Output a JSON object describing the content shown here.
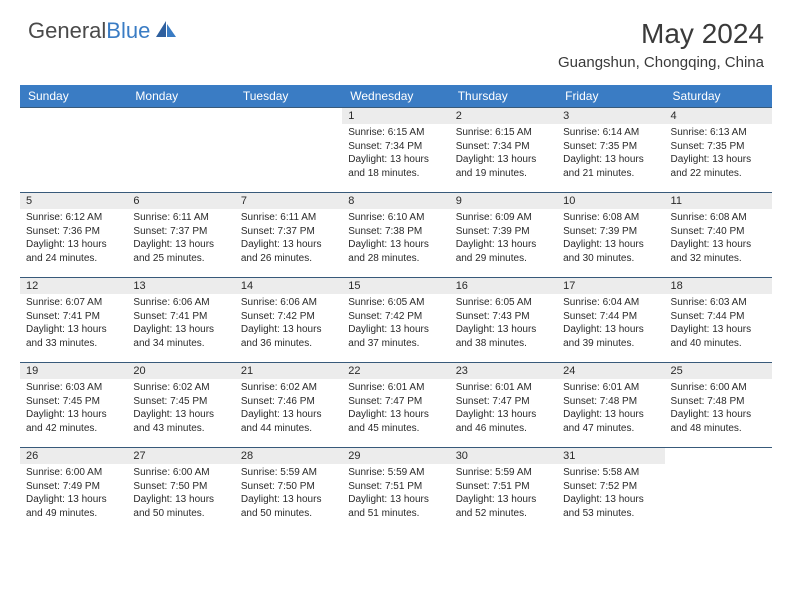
{
  "logo": {
    "part1": "General",
    "part2": "Blue"
  },
  "month_title": "May 2024",
  "location": "Guangshun, Chongqing, China",
  "colors": {
    "header_bg": "#3a7cc4",
    "header_fg": "#ffffff",
    "daynum_bg": "#ececec",
    "border": "#385a7a",
    "text": "#2a2a2a",
    "logo_gray": "#4a4a4a",
    "logo_blue": "#3a7cc4"
  },
  "day_headers": [
    "Sunday",
    "Monday",
    "Tuesday",
    "Wednesday",
    "Thursday",
    "Friday",
    "Saturday"
  ],
  "weeks": [
    [
      {
        "n": "",
        "lines": []
      },
      {
        "n": "",
        "lines": []
      },
      {
        "n": "",
        "lines": []
      },
      {
        "n": "1",
        "lines": [
          "Sunrise: 6:15 AM",
          "Sunset: 7:34 PM",
          "Daylight: 13 hours",
          "and 18 minutes."
        ]
      },
      {
        "n": "2",
        "lines": [
          "Sunrise: 6:15 AM",
          "Sunset: 7:34 PM",
          "Daylight: 13 hours",
          "and 19 minutes."
        ]
      },
      {
        "n": "3",
        "lines": [
          "Sunrise: 6:14 AM",
          "Sunset: 7:35 PM",
          "Daylight: 13 hours",
          "and 21 minutes."
        ]
      },
      {
        "n": "4",
        "lines": [
          "Sunrise: 6:13 AM",
          "Sunset: 7:35 PM",
          "Daylight: 13 hours",
          "and 22 minutes."
        ]
      }
    ],
    [
      {
        "n": "5",
        "lines": [
          "Sunrise: 6:12 AM",
          "Sunset: 7:36 PM",
          "Daylight: 13 hours",
          "and 24 minutes."
        ]
      },
      {
        "n": "6",
        "lines": [
          "Sunrise: 6:11 AM",
          "Sunset: 7:37 PM",
          "Daylight: 13 hours",
          "and 25 minutes."
        ]
      },
      {
        "n": "7",
        "lines": [
          "Sunrise: 6:11 AM",
          "Sunset: 7:37 PM",
          "Daylight: 13 hours",
          "and 26 minutes."
        ]
      },
      {
        "n": "8",
        "lines": [
          "Sunrise: 6:10 AM",
          "Sunset: 7:38 PM",
          "Daylight: 13 hours",
          "and 28 minutes."
        ]
      },
      {
        "n": "9",
        "lines": [
          "Sunrise: 6:09 AM",
          "Sunset: 7:39 PM",
          "Daylight: 13 hours",
          "and 29 minutes."
        ]
      },
      {
        "n": "10",
        "lines": [
          "Sunrise: 6:08 AM",
          "Sunset: 7:39 PM",
          "Daylight: 13 hours",
          "and 30 minutes."
        ]
      },
      {
        "n": "11",
        "lines": [
          "Sunrise: 6:08 AM",
          "Sunset: 7:40 PM",
          "Daylight: 13 hours",
          "and 32 minutes."
        ]
      }
    ],
    [
      {
        "n": "12",
        "lines": [
          "Sunrise: 6:07 AM",
          "Sunset: 7:41 PM",
          "Daylight: 13 hours",
          "and 33 minutes."
        ]
      },
      {
        "n": "13",
        "lines": [
          "Sunrise: 6:06 AM",
          "Sunset: 7:41 PM",
          "Daylight: 13 hours",
          "and 34 minutes."
        ]
      },
      {
        "n": "14",
        "lines": [
          "Sunrise: 6:06 AM",
          "Sunset: 7:42 PM",
          "Daylight: 13 hours",
          "and 36 minutes."
        ]
      },
      {
        "n": "15",
        "lines": [
          "Sunrise: 6:05 AM",
          "Sunset: 7:42 PM",
          "Daylight: 13 hours",
          "and 37 minutes."
        ]
      },
      {
        "n": "16",
        "lines": [
          "Sunrise: 6:05 AM",
          "Sunset: 7:43 PM",
          "Daylight: 13 hours",
          "and 38 minutes."
        ]
      },
      {
        "n": "17",
        "lines": [
          "Sunrise: 6:04 AM",
          "Sunset: 7:44 PM",
          "Daylight: 13 hours",
          "and 39 minutes."
        ]
      },
      {
        "n": "18",
        "lines": [
          "Sunrise: 6:03 AM",
          "Sunset: 7:44 PM",
          "Daylight: 13 hours",
          "and 40 minutes."
        ]
      }
    ],
    [
      {
        "n": "19",
        "lines": [
          "Sunrise: 6:03 AM",
          "Sunset: 7:45 PM",
          "Daylight: 13 hours",
          "and 42 minutes."
        ]
      },
      {
        "n": "20",
        "lines": [
          "Sunrise: 6:02 AM",
          "Sunset: 7:45 PM",
          "Daylight: 13 hours",
          "and 43 minutes."
        ]
      },
      {
        "n": "21",
        "lines": [
          "Sunrise: 6:02 AM",
          "Sunset: 7:46 PM",
          "Daylight: 13 hours",
          "and 44 minutes."
        ]
      },
      {
        "n": "22",
        "lines": [
          "Sunrise: 6:01 AM",
          "Sunset: 7:47 PM",
          "Daylight: 13 hours",
          "and 45 minutes."
        ]
      },
      {
        "n": "23",
        "lines": [
          "Sunrise: 6:01 AM",
          "Sunset: 7:47 PM",
          "Daylight: 13 hours",
          "and 46 minutes."
        ]
      },
      {
        "n": "24",
        "lines": [
          "Sunrise: 6:01 AM",
          "Sunset: 7:48 PM",
          "Daylight: 13 hours",
          "and 47 minutes."
        ]
      },
      {
        "n": "25",
        "lines": [
          "Sunrise: 6:00 AM",
          "Sunset: 7:48 PM",
          "Daylight: 13 hours",
          "and 48 minutes."
        ]
      }
    ],
    [
      {
        "n": "26",
        "lines": [
          "Sunrise: 6:00 AM",
          "Sunset: 7:49 PM",
          "Daylight: 13 hours",
          "and 49 minutes."
        ]
      },
      {
        "n": "27",
        "lines": [
          "Sunrise: 6:00 AM",
          "Sunset: 7:50 PM",
          "Daylight: 13 hours",
          "and 50 minutes."
        ]
      },
      {
        "n": "28",
        "lines": [
          "Sunrise: 5:59 AM",
          "Sunset: 7:50 PM",
          "Daylight: 13 hours",
          "and 50 minutes."
        ]
      },
      {
        "n": "29",
        "lines": [
          "Sunrise: 5:59 AM",
          "Sunset: 7:51 PM",
          "Daylight: 13 hours",
          "and 51 minutes."
        ]
      },
      {
        "n": "30",
        "lines": [
          "Sunrise: 5:59 AM",
          "Sunset: 7:51 PM",
          "Daylight: 13 hours",
          "and 52 minutes."
        ]
      },
      {
        "n": "31",
        "lines": [
          "Sunrise: 5:58 AM",
          "Sunset: 7:52 PM",
          "Daylight: 13 hours",
          "and 53 minutes."
        ]
      },
      {
        "n": "",
        "lines": []
      }
    ]
  ]
}
